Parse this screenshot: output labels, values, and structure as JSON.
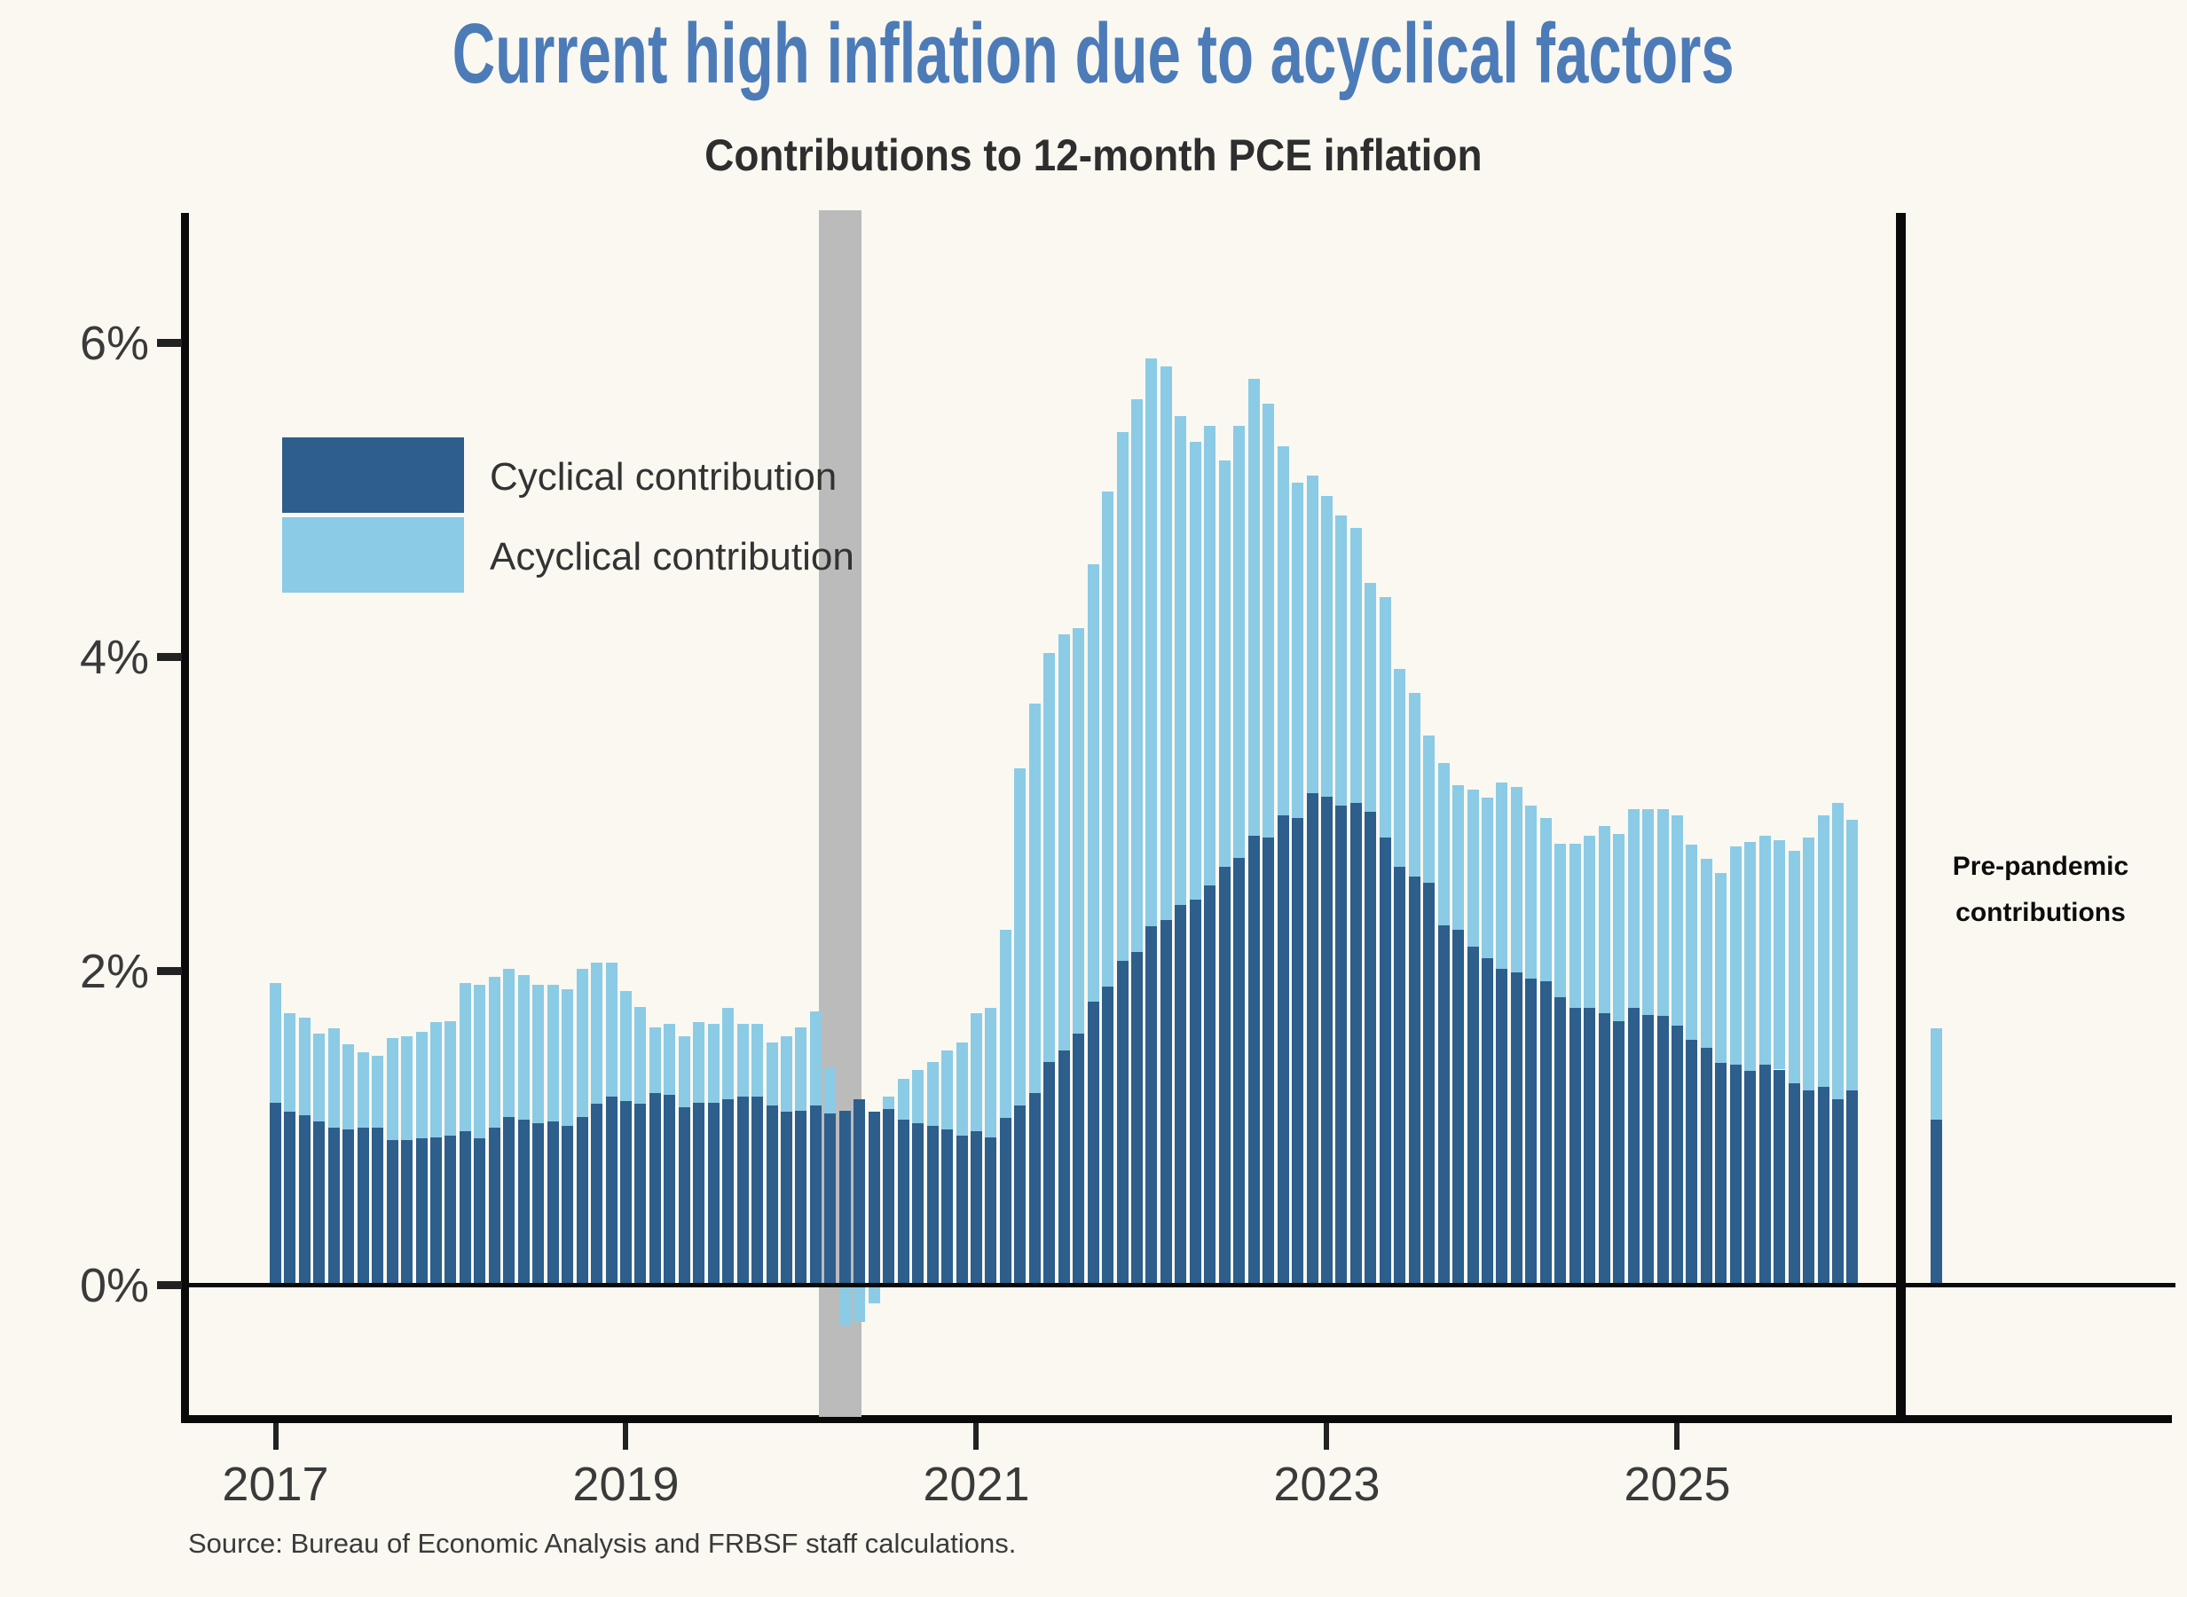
{
  "header": {
    "title": "Current high inflation due to acyclical factors",
    "subtitle": "Contributions to 12-month PCE inflation"
  },
  "legend": [
    {
      "label": "Cyclical contribution",
      "color": "#2d5e8c"
    },
    {
      "label": "Acyclical contribution",
      "color": "#8bcbe6"
    }
  ],
  "annotations": {
    "pre_pandemic_line1": "Pre-pandemic",
    "pre_pandemic_line2": "contributions"
  },
  "source": "Source: Bureau of Economic Analysis and FRBSF staff calculations.",
  "colors": {
    "background": "#faf8f1",
    "title_blue": "#4c7bb8",
    "cyclical_dark_blue": "#2d5e8c",
    "acyclical_light_blue": "#8bcbe6",
    "recession_gray": "#bbbbbb",
    "axis_black": "#0a0a0a",
    "label_gray": "#3a3a3a"
  },
  "chart_data": {
    "type": "bar",
    "stacked": true,
    "title": "Contributions to 12-month PCE inflation",
    "xlabel": "",
    "ylabel": "",
    "ylim": [
      -0.85,
      6.85
    ],
    "grid": false,
    "legend_position": "upper-left-inside",
    "start_month": "2017-01",
    "end_month": "2026-01",
    "x_tick_years": [
      2017,
      2019,
      2021,
      2023,
      2025
    ],
    "x_tick_labels": [
      "2017",
      "2019",
      "2021",
      "2023",
      "2025"
    ],
    "y_ticks": [
      0,
      2,
      4,
      6
    ],
    "y_tick_labels": [
      "0%",
      "2%",
      "4%",
      "6%"
    ],
    "recession_band": {
      "start_month": "2020-02",
      "end_month": "2020-04"
    },
    "series": [
      {
        "name": "Cyclical contribution",
        "color": "#2d5e8c",
        "values": [
          1.16,
          1.1,
          1.08,
          1.04,
          1.0,
          0.99,
          1.0,
          1.0,
          0.92,
          0.92,
          0.93,
          0.94,
          0.95,
          0.98,
          0.93,
          1.0,
          1.07,
          1.05,
          1.03,
          1.04,
          1.01,
          1.07,
          1.15,
          1.2,
          1.17,
          1.15,
          1.22,
          1.21,
          1.13,
          1.16,
          1.16,
          1.18,
          1.2,
          1.2,
          1.14,
          1.1,
          1.11,
          1.14,
          1.09,
          1.11,
          1.18,
          1.1,
          1.12,
          1.05,
          1.03,
          1.01,
          0.99,
          0.95,
          0.98,
          0.94,
          1.06,
          1.14,
          1.22,
          1.42,
          1.49,
          1.6,
          1.8,
          1.9,
          2.06,
          2.12,
          2.28,
          2.32,
          2.42,
          2.45,
          2.54,
          2.66,
          2.72,
          2.86,
          2.85,
          2.99,
          2.97,
          3.13,
          3.11,
          3.05,
          3.07,
          3.01,
          2.85,
          2.66,
          2.6,
          2.56,
          2.29,
          2.26,
          2.15,
          2.08,
          2.01,
          1.99,
          1.95,
          1.93,
          1.83,
          1.76,
          1.76,
          1.73,
          1.68,
          1.76,
          1.72,
          1.71,
          1.65,
          1.56,
          1.51,
          1.41,
          1.4,
          1.36,
          1.4,
          1.37,
          1.28,
          1.24,
          1.26,
          1.18,
          1.24
        ]
      },
      {
        "name": "Acyclical contribution",
        "color": "#8bcbe6",
        "values": [
          0.76,
          0.63,
          0.62,
          0.56,
          0.63,
          0.54,
          0.48,
          0.46,
          0.65,
          0.66,
          0.68,
          0.73,
          0.73,
          0.94,
          0.98,
          0.96,
          0.94,
          0.92,
          0.88,
          0.87,
          0.87,
          0.94,
          0.9,
          0.85,
          0.7,
          0.62,
          0.42,
          0.45,
          0.45,
          0.51,
          0.5,
          0.58,
          0.46,
          0.46,
          0.4,
          0.48,
          0.53,
          0.6,
          0.29,
          -0.26,
          -0.24,
          -0.12,
          0.08,
          0.26,
          0.34,
          0.41,
          0.5,
          0.59,
          0.75,
          0.82,
          1.2,
          2.15,
          2.48,
          2.6,
          2.65,
          2.58,
          2.79,
          3.15,
          3.37,
          3.52,
          3.62,
          3.53,
          3.11,
          2.92,
          2.93,
          2.59,
          2.75,
          2.91,
          2.76,
          2.35,
          2.14,
          2.02,
          1.91,
          1.85,
          1.75,
          1.46,
          1.53,
          1.26,
          1.17,
          0.94,
          1.03,
          0.92,
          1.0,
          1.02,
          1.19,
          1.18,
          1.1,
          1.04,
          0.98,
          1.05,
          1.1,
          1.19,
          1.19,
          1.27,
          1.31,
          1.32,
          1.34,
          1.24,
          1.2,
          1.21,
          1.39,
          1.46,
          1.46,
          1.46,
          1.48,
          1.61,
          1.73,
          1.89,
          1.72
        ]
      }
    ],
    "pre_pandemic": {
      "label": "Pre-pandemic contributions",
      "cyclical": 1.05,
      "acyclical": 0.58
    }
  }
}
